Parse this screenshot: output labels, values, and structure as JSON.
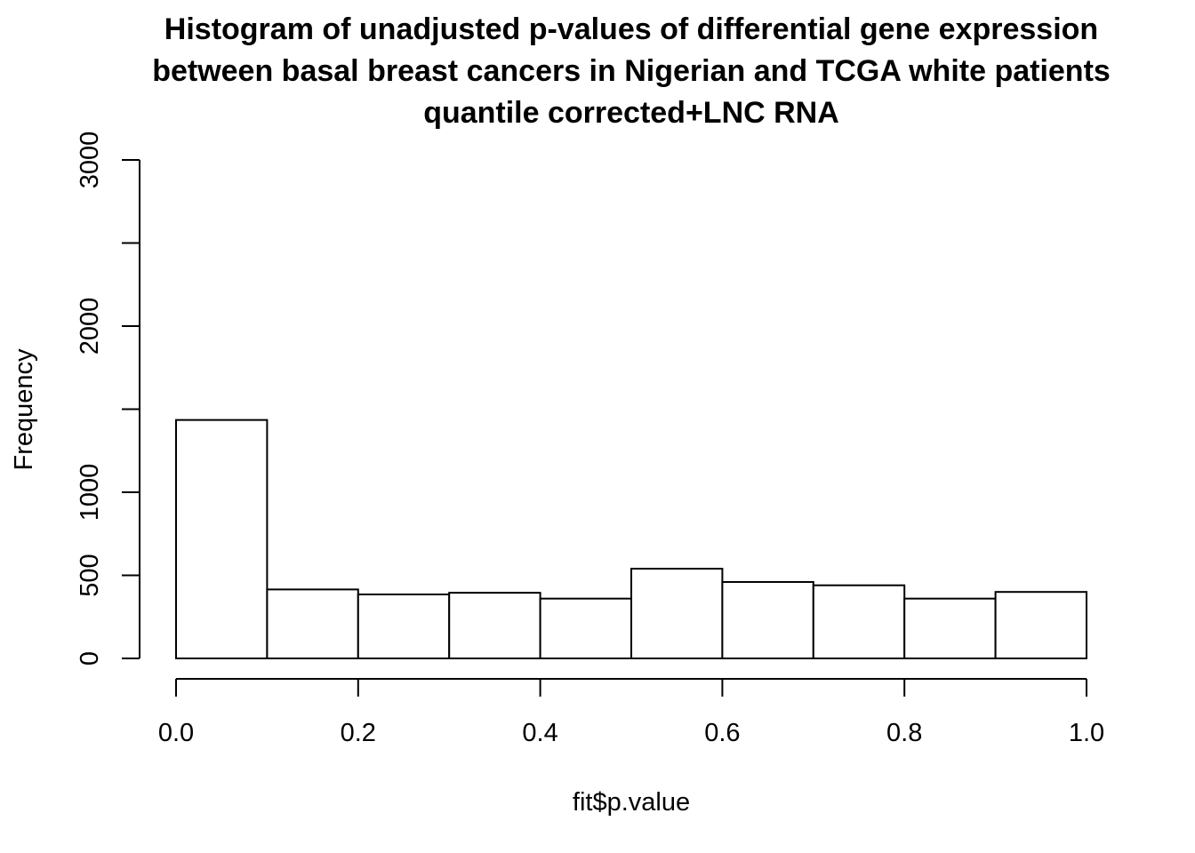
{
  "title_lines": [
    "Histogram of unadjusted p-values of differential gene expression",
    "between basal breast cancers in Nigerian and TCGA white patients",
    "quantile corrected+LNC RNA"
  ],
  "chart_data": {
    "type": "bar",
    "title": "Histogram of unadjusted p-values of differential gene expression between basal breast cancers in Nigerian and TCGA white patients quantile corrected+LNC RNA",
    "xlabel": "fit$p.value",
    "ylabel": "Frequency",
    "bin_edges": [
      0.0,
      0.1,
      0.2,
      0.3,
      0.4,
      0.5,
      0.6,
      0.7,
      0.8,
      0.9,
      1.0
    ],
    "values": [
      1435,
      415,
      385,
      395,
      360,
      540,
      460,
      440,
      360,
      400
    ],
    "xlim": [
      0,
      1
    ],
    "ylim": [
      0,
      3000
    ],
    "x_ticks": [
      "0.0",
      "0.2",
      "0.4",
      "0.6",
      "0.8",
      "1.0"
    ],
    "y_ticks": [
      "0",
      "500",
      "1000",
      "",
      "2000",
      "",
      "3000"
    ],
    "y_tick_values": [
      0,
      500,
      1000,
      1500,
      2000,
      2500,
      3000
    ],
    "bar_fill": "#ffffff",
    "bar_stroke": "#000000",
    "grid": false
  }
}
